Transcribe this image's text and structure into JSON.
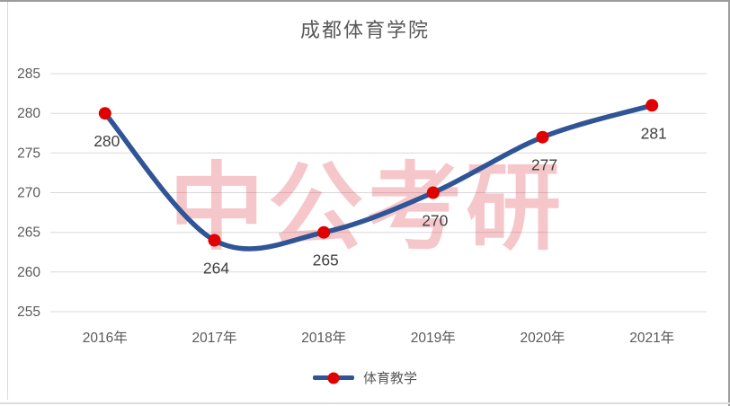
{
  "chart_data": {
    "type": "line",
    "title": "成都体育学院",
    "categories": [
      "2016年",
      "2017年",
      "2018年",
      "2019年",
      "2020年",
      "2021年"
    ],
    "series": [
      {
        "name": "体育教学",
        "values": [
          280,
          264,
          265,
          270,
          277,
          281
        ]
      }
    ],
    "ylim": [
      255,
      285
    ],
    "yticks": [
      285,
      280,
      275,
      270,
      265,
      260,
      255
    ],
    "grid": true,
    "legend_position": "bottom",
    "data_labels": true,
    "smoothed_line": true,
    "line_color": "#2F5597",
    "marker_color": "#E00000",
    "gridline_color": "#d9d9d9",
    "axis_text_color": "#595959",
    "data_label_color": "#404040",
    "watermark_text": "中公考研",
    "watermark_color": "rgba(224,70,80,0.30)"
  }
}
